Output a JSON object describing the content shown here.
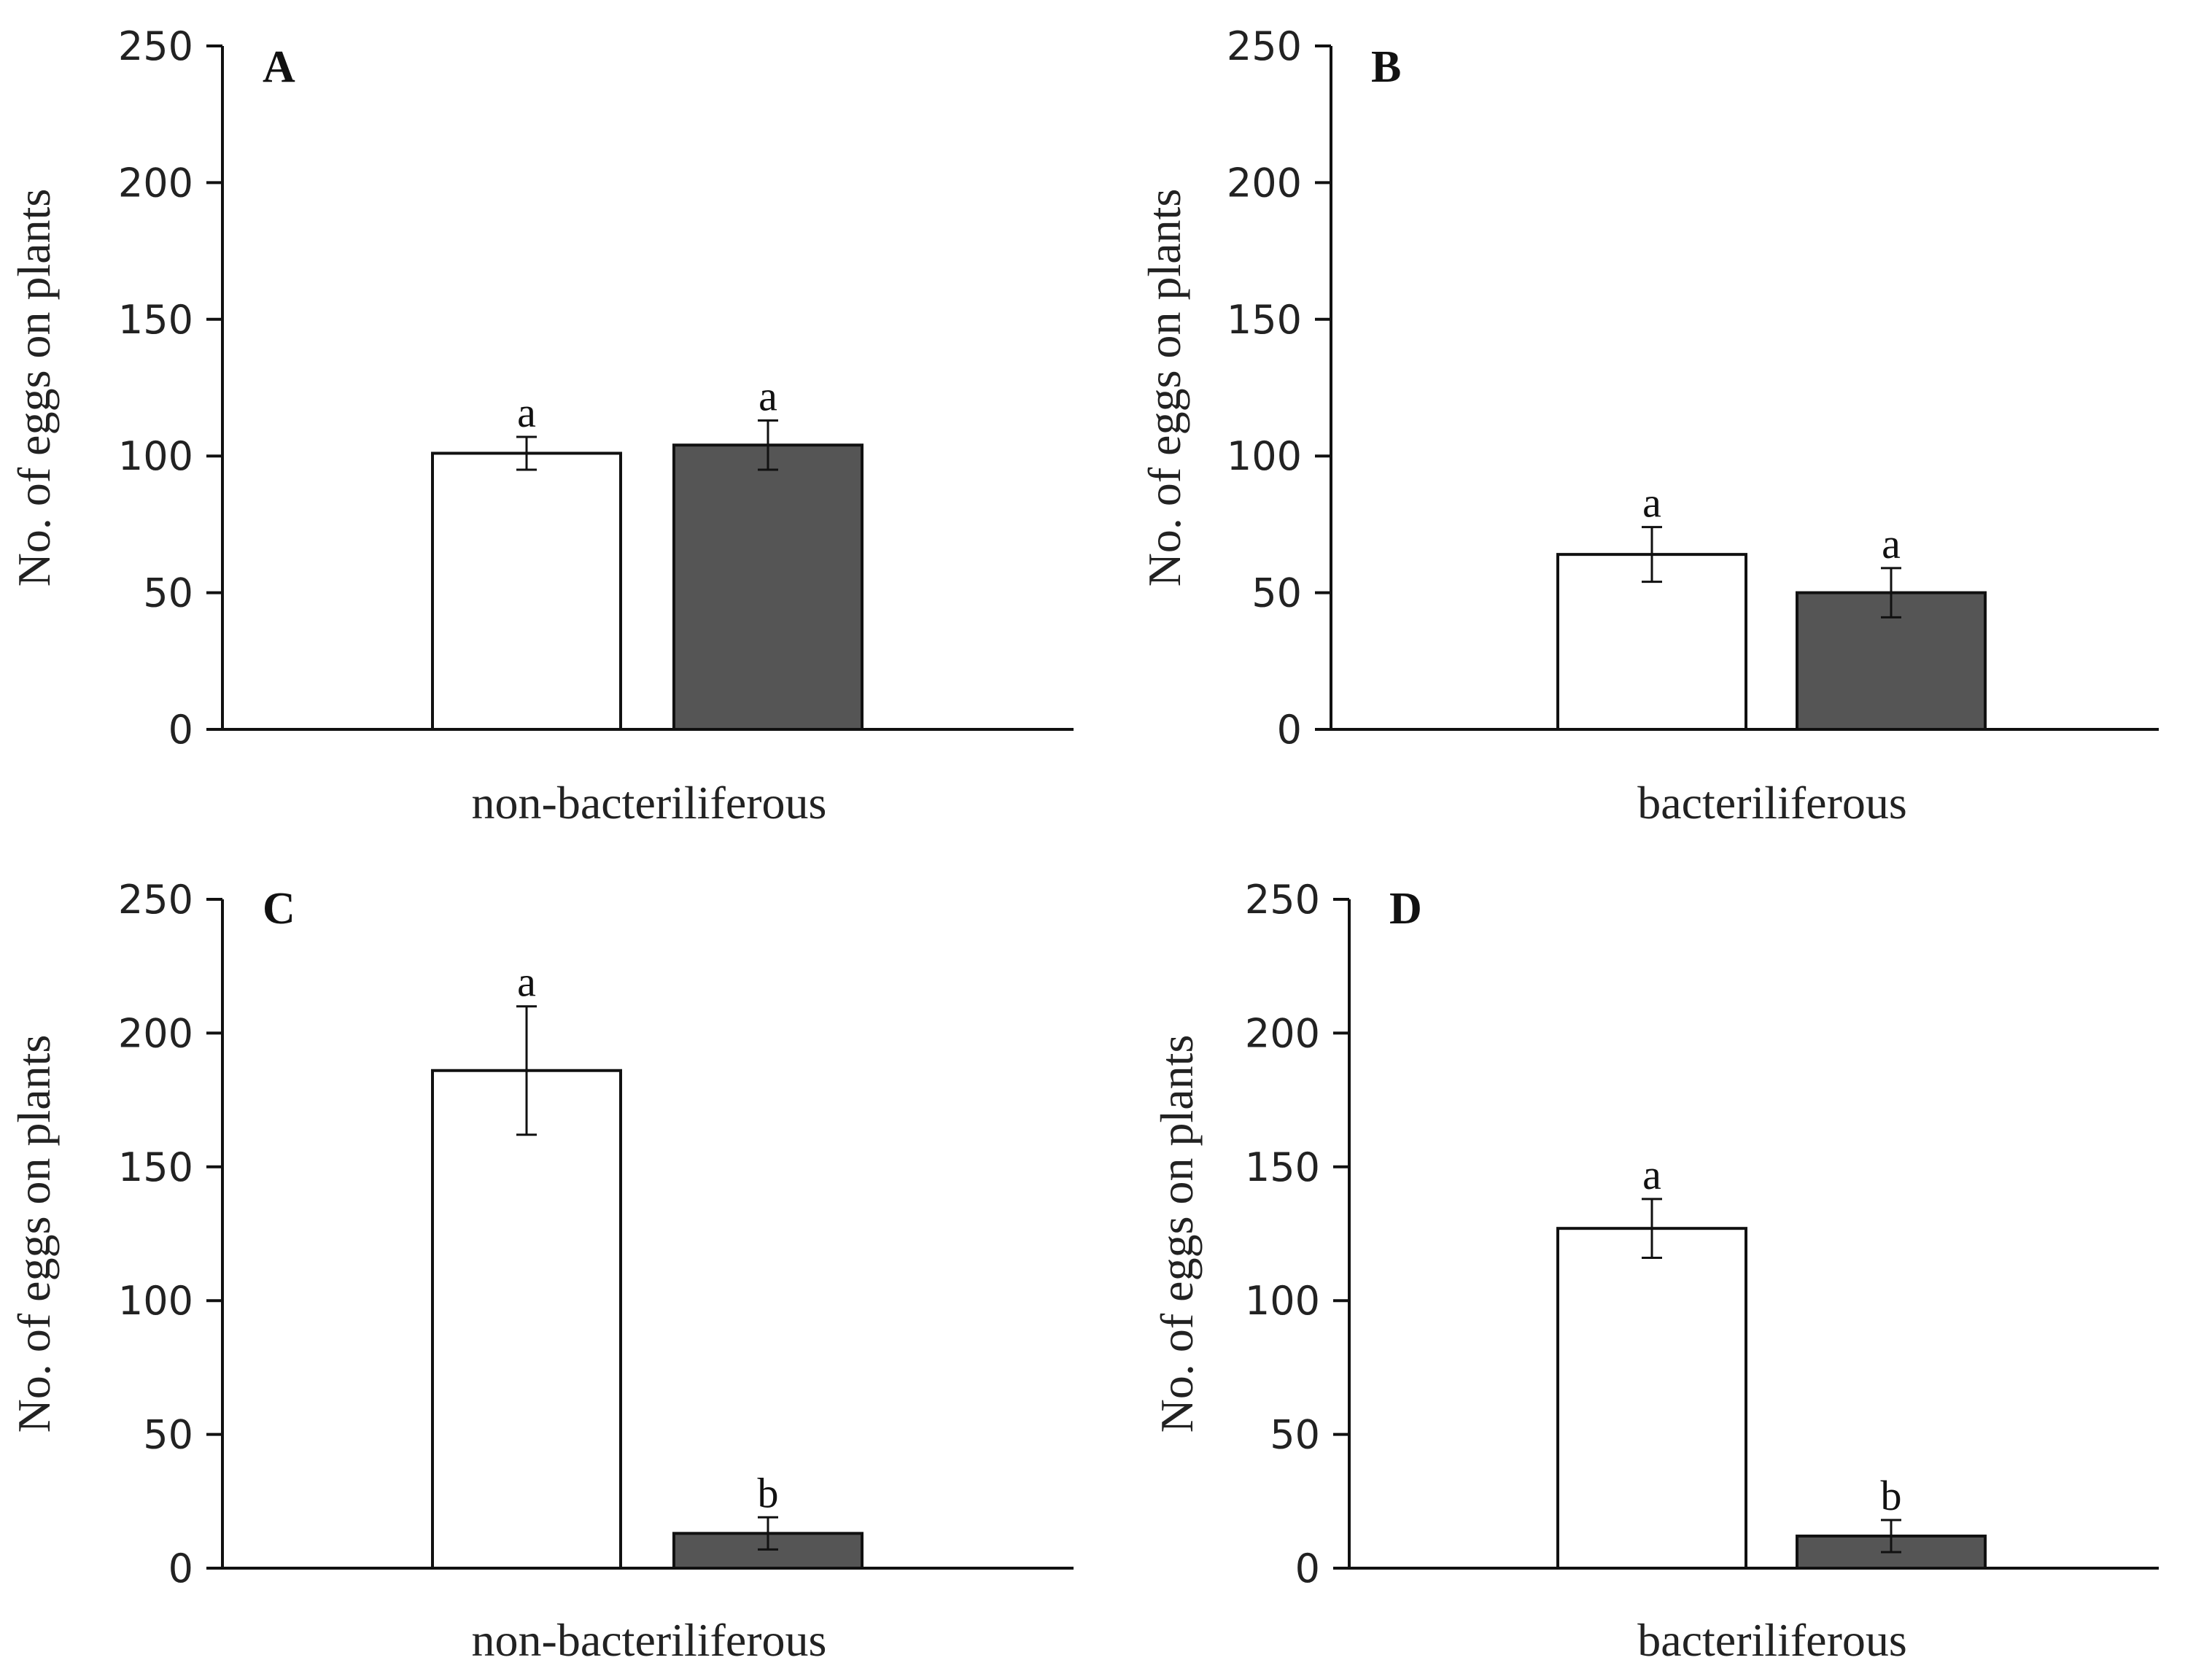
{
  "chart_data": [
    {
      "type": "bar",
      "panel": "A",
      "categories": [
        "non-bacteriliferous"
      ],
      "xlabel": "non-bacteriliferous",
      "ylabel": "No. of eggs on plants",
      "ylim": [
        0,
        250
      ],
      "yticks": [
        "0",
        "50",
        "100",
        "150",
        "200",
        "250"
      ],
      "grid": false,
      "series": [
        {
          "fill": "#ffffff",
          "values": [
            101
          ],
          "error": [
            6
          ],
          "significance": [
            "a"
          ]
        },
        {
          "fill": "#555555",
          "values": [
            104
          ],
          "error": [
            9
          ],
          "significance": [
            "a"
          ]
        }
      ]
    },
    {
      "type": "bar",
      "panel": "B",
      "categories": [
        "bacteriliferous"
      ],
      "xlabel": "bacteriliferous",
      "ylabel": "No. of eggs on plants",
      "ylim": [
        0,
        250
      ],
      "yticks": [
        "0",
        "50",
        "100",
        "150",
        "200",
        "250"
      ],
      "grid": false,
      "series": [
        {
          "fill": "#ffffff",
          "values": [
            64
          ],
          "error": [
            10
          ],
          "significance": [
            "a"
          ]
        },
        {
          "fill": "#555555",
          "values": [
            50
          ],
          "error": [
            9
          ],
          "significance": [
            "a"
          ]
        }
      ]
    },
    {
      "type": "bar",
      "panel": "C",
      "categories": [
        "non-bacteriliferous"
      ],
      "xlabel": "non-bacteriliferous",
      "ylabel": "No. of eggs on plants",
      "ylim": [
        0,
        250
      ],
      "yticks": [
        "0",
        "50",
        "100",
        "150",
        "200",
        "250"
      ],
      "grid": false,
      "series": [
        {
          "fill": "#ffffff",
          "values": [
            186
          ],
          "error": [
            24
          ],
          "significance": [
            "a"
          ]
        },
        {
          "fill": "#555555",
          "values": [
            13
          ],
          "error": [
            6
          ],
          "significance": [
            "b"
          ]
        }
      ]
    },
    {
      "type": "bar",
      "panel": "D",
      "categories": [
        "bacteriliferous"
      ],
      "xlabel": "bacteriliferous",
      "ylabel": "No. of eggs on plants",
      "ylim": [
        0,
        250
      ],
      "yticks": [
        "0",
        "50",
        "100",
        "150",
        "200",
        "250"
      ],
      "grid": false,
      "series": [
        {
          "fill": "#ffffff",
          "values": [
            127
          ],
          "error": [
            11
          ],
          "significance": [
            "a"
          ]
        },
        {
          "fill": "#555555",
          "values": [
            12
          ],
          "error": [
            6
          ],
          "significance": [
            "b"
          ]
        }
      ]
    }
  ]
}
